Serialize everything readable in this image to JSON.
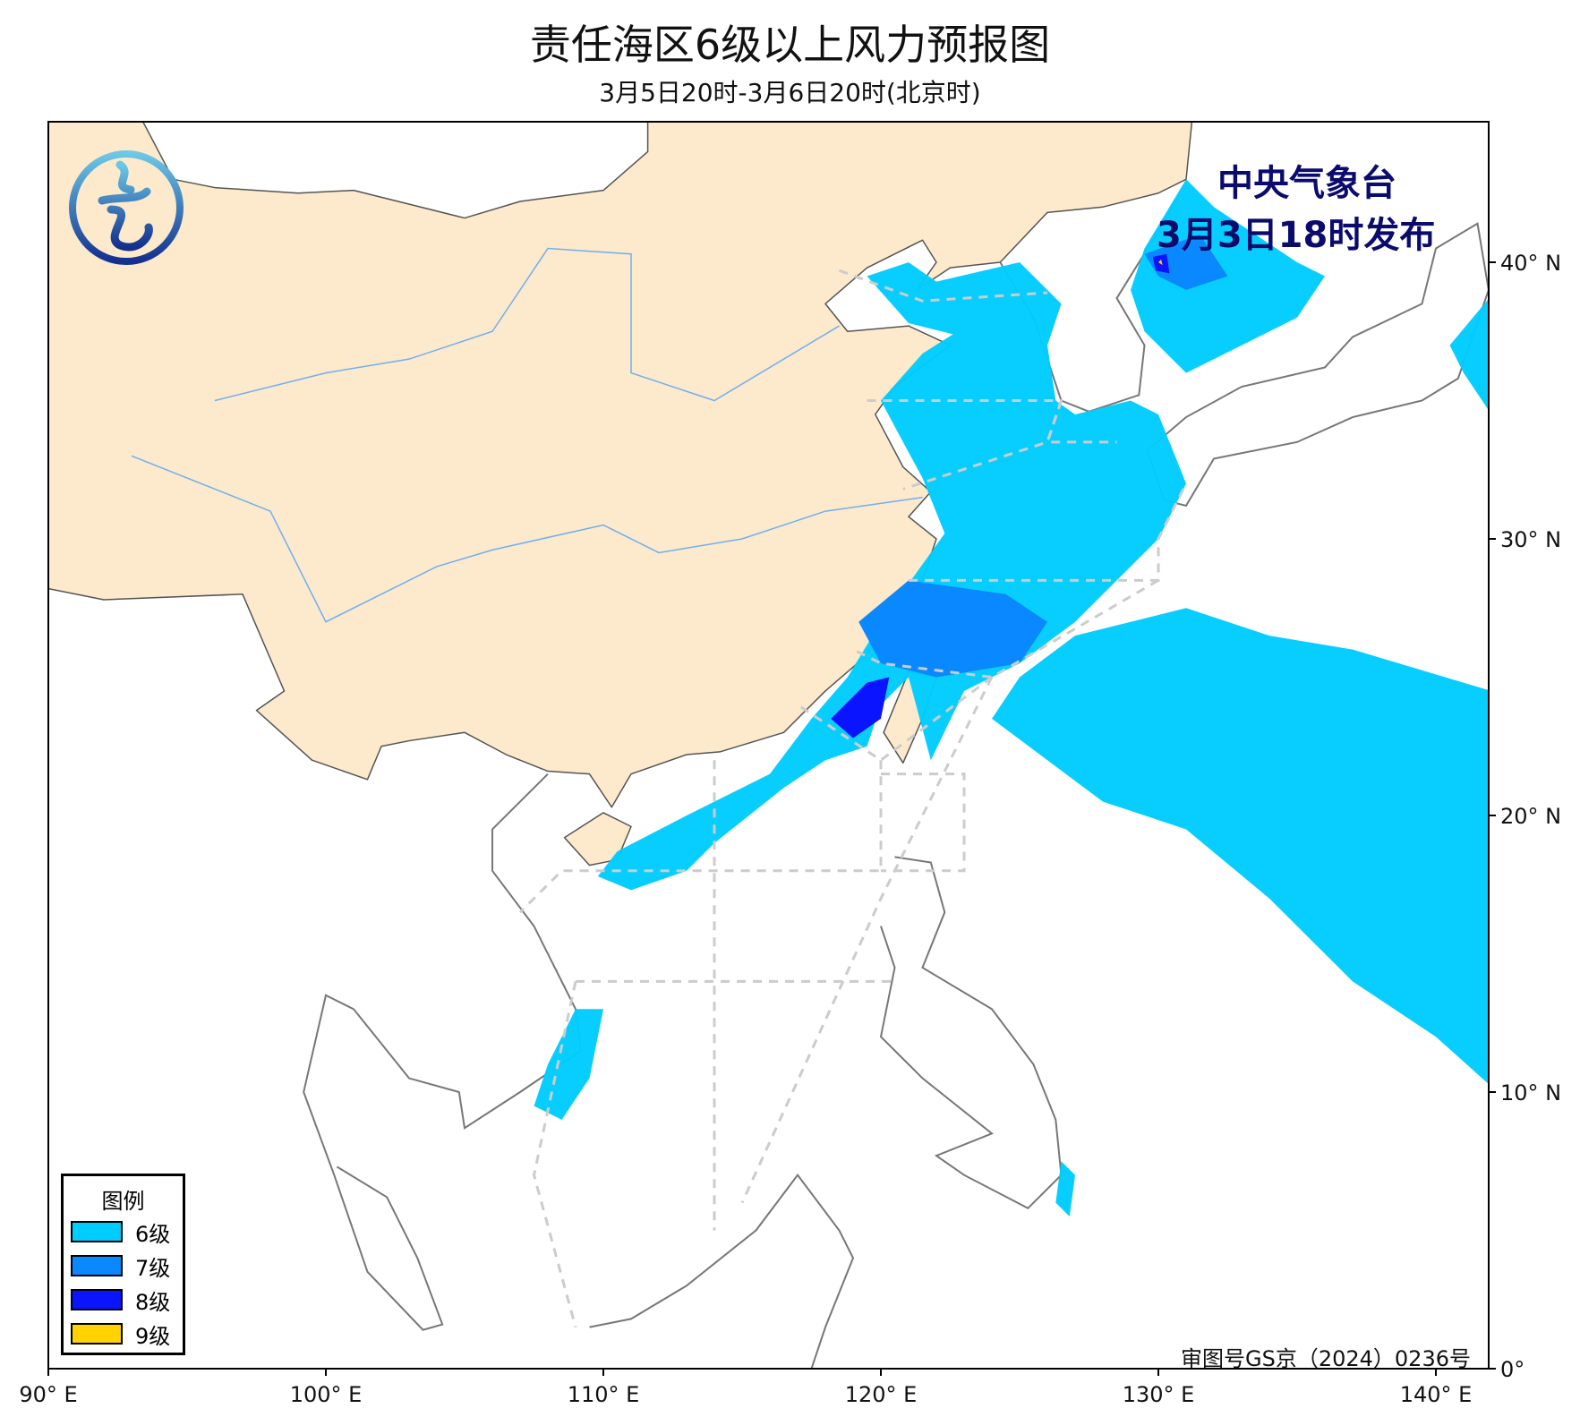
{
  "title": "责任海区6级以上风力预报图",
  "subtitle": "3月5日20时-3月6日20时(北京时)",
  "agency": {
    "name": "中央气象台",
    "issued": "3月3日18时发布",
    "color": "#0b0b6e",
    "logo": "cma-logo"
  },
  "legend": {
    "title": "图例",
    "items": [
      {
        "label": "6级",
        "color": "#00ccff"
      },
      {
        "label": "7级",
        "color": "#0a88ff"
      },
      {
        "label": "8级",
        "color": "#0a14ff"
      },
      {
        "label": "9级",
        "color": "#ffd200"
      }
    ]
  },
  "axes": {
    "lon_ticks": [
      "90° E",
      "100° E",
      "110° E",
      "120° E",
      "130° E",
      "140° E"
    ],
    "lat_ticks": [
      "0°",
      "10° N",
      "20° N",
      "30° N",
      "40° N"
    ]
  },
  "colors": {
    "land": "#fde9cc",
    "river": "#6fb0f0",
    "border": "#555555",
    "zone_line": "#cccccc"
  },
  "stamp": "审图号GS京（2024）0236号"
}
